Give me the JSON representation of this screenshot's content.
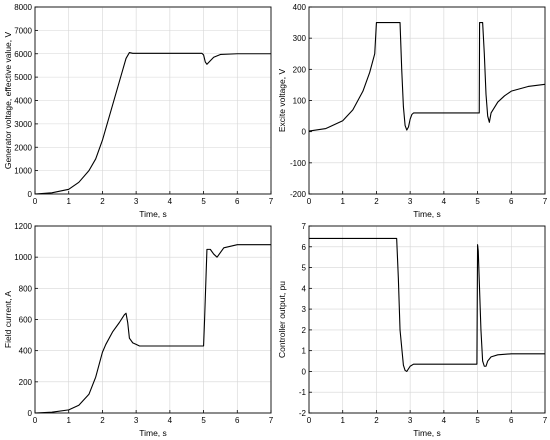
{
  "chart_data": [
    {
      "type": "line",
      "xlabel": "Time, s",
      "ylabel": "Generator voltage, effective value, V",
      "xlim": [
        0,
        7
      ],
      "ylim": [
        0,
        8000
      ],
      "xticks": [
        0,
        1,
        2,
        3,
        4,
        5,
        6,
        7
      ],
      "yticks": [
        0,
        1000,
        2000,
        3000,
        4000,
        5000,
        6000,
        7000,
        8000
      ],
      "grid": true,
      "series": [
        {
          "x": [
            0,
            0.5,
            1.0,
            1.3,
            1.6,
            1.8,
            2.0,
            2.2,
            2.4,
            2.6,
            2.7,
            2.8,
            2.9,
            3.0,
            4.0,
            4.95,
            5.0,
            5.05,
            5.1,
            5.2,
            5.3,
            5.5,
            6.0,
            7.0
          ],
          "y": [
            0,
            50,
            200,
            500,
            1000,
            1500,
            2300,
            3300,
            4300,
            5300,
            5800,
            6050,
            6020,
            6020,
            6020,
            6020,
            5950,
            5650,
            5550,
            5700,
            5850,
            5970,
            6000,
            6000
          ]
        }
      ]
    },
    {
      "type": "line",
      "xlabel": "Time, s",
      "ylabel": "Excite voltage, V",
      "xlim": [
        0,
        7
      ],
      "ylim": [
        -200,
        400
      ],
      "xticks": [
        0,
        1,
        2,
        3,
        4,
        5,
        6,
        7
      ],
      "yticks": [
        -200,
        -100,
        0,
        100,
        200,
        300,
        400
      ],
      "grid": true,
      "series": [
        {
          "x": [
            0,
            0.5,
            1.0,
            1.3,
            1.6,
            1.8,
            1.95,
            2.0,
            2.6,
            2.7,
            2.75,
            2.8,
            2.85,
            2.9,
            2.95,
            3.0,
            3.05,
            3.1,
            5.0,
            5.05,
            5.06,
            5.15,
            5.2,
            5.25,
            5.3,
            5.35,
            5.4,
            5.6,
            5.8,
            6.0,
            6.5,
            7.0
          ],
          "y": [
            2,
            10,
            35,
            70,
            130,
            190,
            250,
            350,
            350,
            350,
            200,
            80,
            20,
            5,
            15,
            40,
            55,
            60,
            60,
            60,
            350,
            350,
            250,
            120,
            50,
            30,
            60,
            95,
            115,
            130,
            145,
            152
          ]
        }
      ]
    },
    {
      "type": "line",
      "xlabel": "Time, s",
      "ylabel": "Field current, A",
      "xlim": [
        0,
        7
      ],
      "ylim": [
        0,
        1200
      ],
      "xticks": [
        0,
        1,
        2,
        3,
        4,
        5,
        6,
        7
      ],
      "yticks": [
        0,
        200,
        400,
        600,
        800,
        1000,
        1200
      ],
      "grid": true,
      "series": [
        {
          "x": [
            0,
            0.5,
            1.0,
            1.3,
            1.6,
            1.8,
            2.0,
            2.1,
            2.3,
            2.5,
            2.65,
            2.7,
            2.75,
            2.8,
            2.9,
            3.0,
            3.1,
            5.0,
            5.03,
            5.1,
            5.2,
            5.3,
            5.4,
            5.6,
            6.0,
            7.0
          ],
          "y": [
            0,
            5,
            20,
            50,
            120,
            230,
            390,
            440,
            520,
            580,
            630,
            640,
            580,
            480,
            450,
            440,
            430,
            430,
            600,
            1050,
            1050,
            1020,
            1000,
            1060,
            1080,
            1080
          ]
        }
      ]
    },
    {
      "type": "line",
      "xlabel": "Time, s",
      "ylabel": "Controller output, pu",
      "xlim": [
        0,
        7
      ],
      "ylim": [
        -2,
        7
      ],
      "xticks": [
        0,
        1,
        2,
        3,
        4,
        5,
        6,
        7
      ],
      "yticks": [
        -2,
        -1,
        0,
        1,
        2,
        3,
        4,
        5,
        6,
        7
      ],
      "grid": true,
      "series": [
        {
          "x": [
            0,
            1,
            2,
            2.6,
            2.65,
            2.7,
            2.8,
            2.85,
            2.9,
            3.0,
            3.1,
            4.0,
            4.98,
            5.0,
            5.02,
            5.1,
            5.15,
            5.2,
            5.25,
            5.3,
            5.4,
            5.6,
            6.0,
            7.0
          ],
          "y": [
            6.4,
            6.4,
            6.4,
            6.4,
            4.5,
            2.0,
            0.3,
            0.05,
            0.0,
            0.25,
            0.35,
            0.35,
            0.35,
            6.1,
            5.8,
            2.0,
            0.5,
            0.25,
            0.25,
            0.5,
            0.7,
            0.8,
            0.85,
            0.85
          ]
        }
      ]
    }
  ]
}
